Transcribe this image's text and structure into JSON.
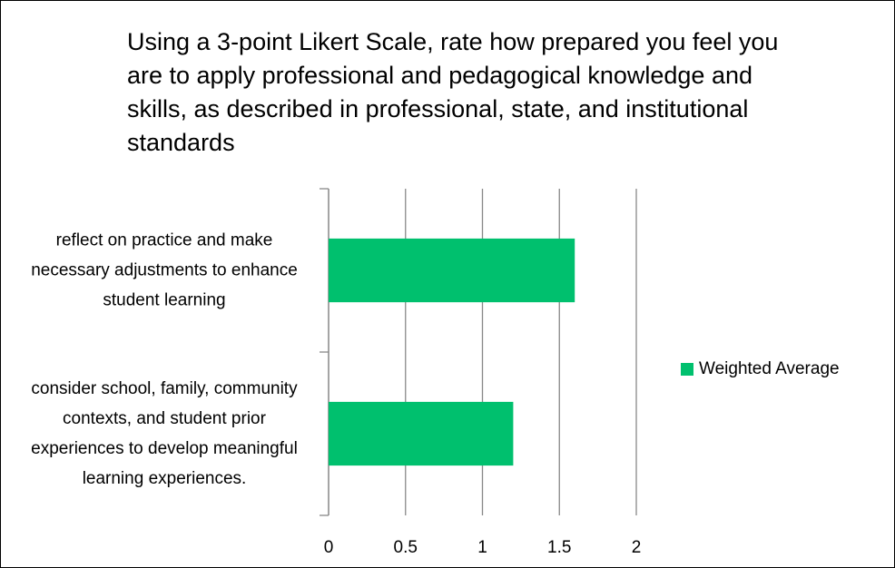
{
  "chart_data": {
    "type": "barh",
    "title": "Using a 3-point Likert Scale, rate how prepared you feel you are to apply professional and pedagogical knowledge and skills, as described in professional, state, and institutional standards",
    "categories": [
      "reflect on practice and make necessary adjustments to enhance student learning",
      "consider school, family, community contexts, and student prior experiences to develop meaningful learning experiences."
    ],
    "series": [
      {
        "name": "Weighted Average",
        "color": "#00c06e",
        "values": [
          1.6,
          1.2
        ]
      }
    ],
    "xlim": [
      0,
      2
    ],
    "xticks": [
      0,
      0.5,
      1,
      1.5,
      2
    ],
    "grid": true,
    "legend": "right"
  }
}
